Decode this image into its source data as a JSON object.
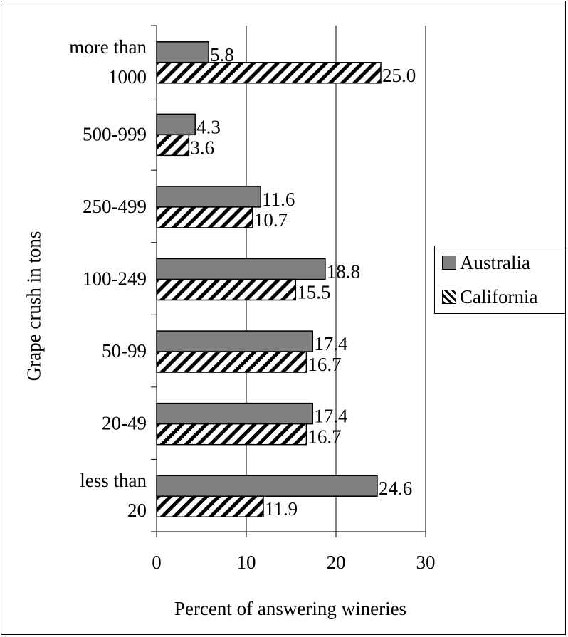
{
  "chart_data": {
    "type": "bar",
    "orientation": "horizontal",
    "title": "",
    "xlabel": "Percent of answering wineries",
    "ylabel": "Grape crush in tons",
    "xlim": [
      0,
      30
    ],
    "xticks": [
      "0",
      "10",
      "20",
      "30"
    ],
    "grid": true,
    "legend_position": "right",
    "categories": [
      [
        "more than",
        "1000"
      ],
      [
        "500-999"
      ],
      [
        "250-499"
      ],
      [
        "100-249"
      ],
      [
        "50-99"
      ],
      [
        "20-49"
      ],
      [
        "less than",
        "20"
      ]
    ],
    "series": [
      {
        "name": "Australia",
        "values": [
          5.8,
          4.3,
          11.6,
          18.8,
          17.4,
          17.4,
          24.6
        ],
        "labels": [
          "5.8",
          "4.3",
          "11.6",
          "18.8",
          "17.4",
          "17.4",
          "24.6"
        ],
        "fill": "#808080",
        "pattern": "solid"
      },
      {
        "name": "California",
        "values": [
          25.0,
          3.6,
          10.7,
          15.5,
          16.7,
          16.7,
          11.9
        ],
        "labels": [
          "25.0",
          "3.6",
          "10.7",
          "15.5",
          "16.7",
          "16.7",
          "11.9"
        ],
        "fill": "#ffffff",
        "pattern": "diagonal-hatch"
      }
    ]
  }
}
